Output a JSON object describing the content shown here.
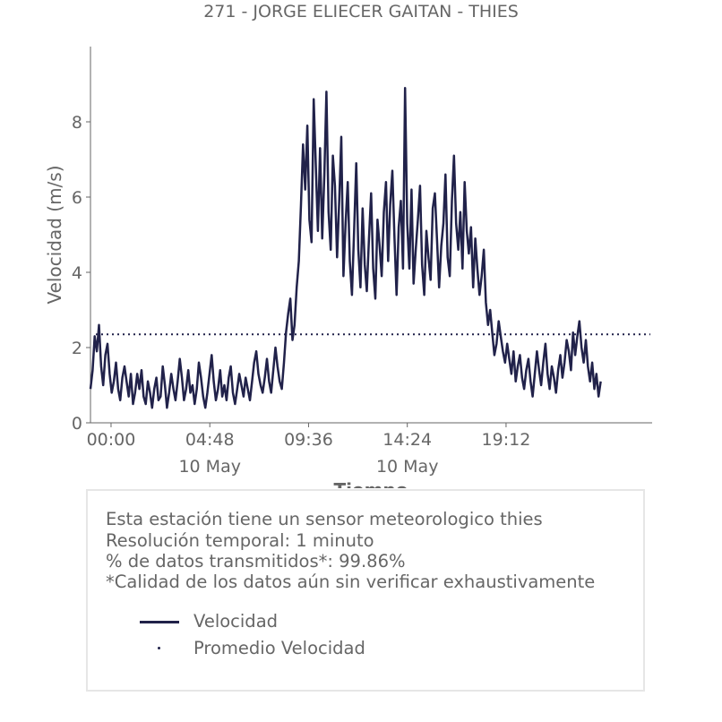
{
  "chart_data": {
    "type": "line",
    "title": "271 - JORGE ELIECER GAITAN - THIES",
    "xlabel": "Tiempo",
    "ylabel": "Velocidad (m/s)",
    "x_range_hours": [
      -1.0,
      26.3
    ],
    "ylim": [
      0,
      10
    ],
    "y_ticks": [
      0,
      2,
      4,
      6,
      8
    ],
    "x_ticks": [
      {
        "hour": 0.0,
        "label": "00:00",
        "date": ""
      },
      {
        "hour": 4.8,
        "label": "04:48",
        "date": "10 May"
      },
      {
        "hour": 9.6,
        "label": "09:36",
        "date": ""
      },
      {
        "hour": 14.4,
        "label": "14:24",
        "date": "10 May"
      },
      {
        "hour": 19.2,
        "label": "19:12",
        "date": ""
      }
    ],
    "grid": false,
    "series": [
      {
        "name": "Velocidad",
        "color": "#21224a",
        "style": "solid",
        "x_start_hour": -1.0,
        "x_end_hour": 23.8,
        "values": [
          0.9,
          1.4,
          2.3,
          1.9,
          2.6,
          1.5,
          1.0,
          1.8,
          2.1,
          1.3,
          0.8,
          1.1,
          1.6,
          0.9,
          0.6,
          1.2,
          1.5,
          1.1,
          0.7,
          1.3,
          0.5,
          0.8,
          1.3,
          0.9,
          1.4,
          0.7,
          0.5,
          1.1,
          0.8,
          0.4,
          0.9,
          1.2,
          0.6,
          0.7,
          1.5,
          1.0,
          0.4,
          0.8,
          1.3,
          0.9,
          0.6,
          1.1,
          1.7,
          1.2,
          0.6,
          0.9,
          1.4,
          0.8,
          1.0,
          0.5,
          0.9,
          1.6,
          1.2,
          0.7,
          0.4,
          0.8,
          1.3,
          1.8,
          1.1,
          0.6,
          0.9,
          1.4,
          0.7,
          1.0,
          0.6,
          1.2,
          1.5,
          0.8,
          0.5,
          0.9,
          1.3,
          1.0,
          0.7,
          1.2,
          0.9,
          0.6,
          1.1,
          1.6,
          1.9,
          1.3,
          1.0,
          0.8,
          1.2,
          1.7,
          1.1,
          0.8,
          1.4,
          2.0,
          1.5,
          1.1,
          0.9,
          1.6,
          2.4,
          2.9,
          3.3,
          2.2,
          2.6,
          3.6,
          4.3,
          5.8,
          7.4,
          6.2,
          7.9,
          5.4,
          4.8,
          8.6,
          6.8,
          5.1,
          7.3,
          4.9,
          6.6,
          8.8,
          5.6,
          4.6,
          7.1,
          6.3,
          4.4,
          5.9,
          7.6,
          3.9,
          5.3,
          6.4,
          4.3,
          3.4,
          5.1,
          6.9,
          4.6,
          3.6,
          5.7,
          4.2,
          3.5,
          4.9,
          6.1,
          4.1,
          3.3,
          5.4,
          4.7,
          3.9,
          5.6,
          6.4,
          4.3,
          5.8,
          6.7,
          4.9,
          3.4,
          5.2,
          5.9,
          4.1,
          8.9,
          5.3,
          4.1,
          6.2,
          3.7,
          4.6,
          5.4,
          6.3,
          4.2,
          3.4,
          5.1,
          4.4,
          3.8,
          5.7,
          6.1,
          4.9,
          3.6,
          4.7,
          5.3,
          6.6,
          4.4,
          3.9,
          5.9,
          7.1,
          5.3,
          4.6,
          5.6,
          4.1,
          6.4,
          5.1,
          4.5,
          5.2,
          3.6,
          4.9,
          4.1,
          3.4,
          3.9,
          4.6,
          3.2,
          2.6,
          3.0,
          2.4,
          1.8,
          2.1,
          2.7,
          2.3,
          1.9,
          1.6,
          2.1,
          1.7,
          1.3,
          1.9,
          1.1,
          1.5,
          1.8,
          1.2,
          0.9,
          1.4,
          1.7,
          1.1,
          0.7,
          1.3,
          1.9,
          1.4,
          1.0,
          1.6,
          2.1,
          1.3,
          0.9,
          1.5,
          1.2,
          0.8,
          1.4,
          1.8,
          1.2,
          1.6,
          2.2,
          1.9,
          1.4,
          2.4,
          1.8,
          2.3,
          2.7,
          2.0,
          1.6,
          2.2,
          1.5,
          1.1,
          1.6,
          0.9,
          1.3,
          0.7,
          1.1
        ]
      },
      {
        "name": "Promedio Velocidad",
        "color": "#21224a",
        "style": "dotted",
        "value": 2.35
      }
    ]
  },
  "info": {
    "line1": "Esta estación tiene un sensor meteorologico thies",
    "line2": "Resolución temporal: 1 minuto",
    "line3": "% de datos transmitidos*: 99.86%",
    "line4": "*Calidad de los datos aún sin verificar exhaustivamente"
  },
  "legend": {
    "line_label": "Velocidad",
    "dot_label": "Promedio Velocidad"
  }
}
